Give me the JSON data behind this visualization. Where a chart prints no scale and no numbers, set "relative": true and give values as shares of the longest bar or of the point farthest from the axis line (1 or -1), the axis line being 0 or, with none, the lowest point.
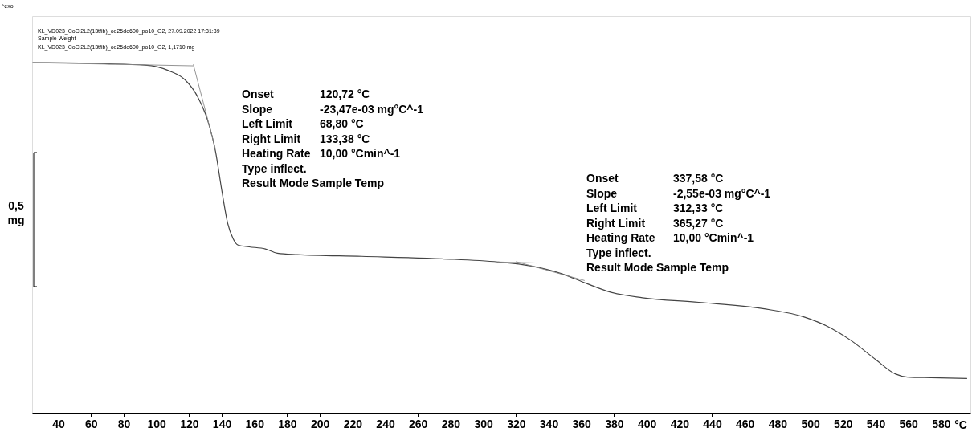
{
  "chart_data": {
    "type": "line",
    "title": "KL_VD023_CoCl2L2(13tfib)_od25do600_po10_O2, 27.09.2022 17:31:39",
    "subtitle": "Sample Weight",
    "ylabel": "0,5 mg",
    "xlabel": "°C",
    "annotations": [
      "^exo",
      "KL_VD023_CoCl2L2(13tfib)_od25do600_po10_O2, 1,1710 mg",
      "Onset\t120,72 °C",
      "Slope\t-23,47e-03 mg°C^-1",
      "Left Limit\t68,80 °C",
      "Right Limit\t133,38 °C",
      "Heating Rate\t10,00 °Cmin^-1",
      "Type inflect.",
      "Result Mode  Sample Temp",
      "Onset\t337,58 °C",
      "Slope\t-2,55e-03 mg°C^-1",
      "Left Limit\t312,33 °C",
      "Right Limit\t365,27 °C",
      "Heating Rate\t10,00 °Cmin^-1",
      "Type inflect.",
      "Result Mode  Sample Temp"
    ],
    "relative": true,
    "grid": false,
    "marker": "none",
    "line_style": "solid",
    "xlim": [
      24,
      598
    ],
    "xticks": [
      40,
      60,
      80,
      100,
      120,
      140,
      160,
      180,
      200,
      220,
      240,
      260,
      280,
      300,
      320,
      340,
      360,
      380,
      400,
      420,
      440,
      460,
      480,
      500,
      520,
      540,
      560,
      580
    ],
    "series": [
      {
        "color": "#444444",
        "x": [
          24.3,
          34,
          68.5,
          93,
          107.7,
          117.6,
          125,
          131.3,
          136.2,
          140.1,
          143.6,
          147,
          150,
          156.8,
          166.7,
          174,
          186.3,
          225.6,
          274.7,
          309,
          328.7,
          348.3,
          363,
          377.8,
          397.4,
          431.8,
          471,
          495.6,
          510.3,
          525,
          540,
          552,
          559.4,
          574,
          596
        ],
        "values": [
          1.0,
          1.0,
          0.997,
          0.993,
          0.977,
          0.951,
          0.905,
          0.837,
          0.747,
          0.634,
          0.543,
          0.498,
          0.48,
          0.475,
          0.469,
          0.457,
          0.453,
          0.448,
          0.441,
          0.432,
          0.421,
          0.398,
          0.371,
          0.346,
          0.33,
          0.317,
          0.299,
          0.276,
          0.249,
          0.208,
          0.154,
          0.113,
          0.104,
          0.102,
          0.1
        ]
      },
      {
        "color": "#888888",
        "x": [
          24.3,
          122.6
        ],
        "values": [
          1.0,
          0.991
        ]
      },
      {
        "color": "#888888",
        "x": [
          122.6,
          136.2
        ],
        "values": [
          0.995,
          0.753
        ]
      },
      {
        "color": "#888888",
        "x": [
          309,
          333
        ],
        "values": [
          0.432,
          0.429
        ]
      },
      {
        "color": "#888888",
        "x": [
          320,
          362
        ],
        "values": [
          0.433,
          0.379
        ]
      }
    ]
  }
}
